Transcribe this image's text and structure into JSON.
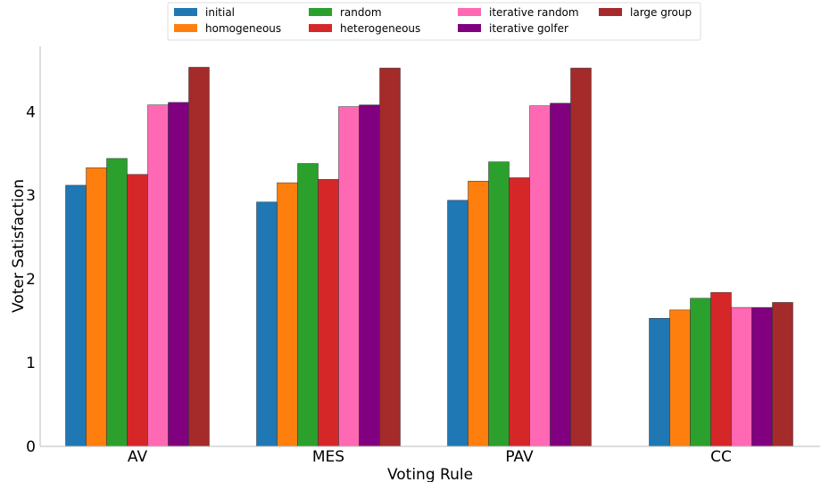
{
  "chart_data": {
    "type": "bar",
    "xlabel": "Voting Rule",
    "ylabel": "Voter Satisfaction",
    "categories": [
      "AV",
      "MES",
      "PAV",
      "CC"
    ],
    "ylim": [
      0,
      4.78
    ],
    "yticks": [
      0,
      1,
      2,
      3,
      4
    ],
    "grid": false,
    "legend_position": "top-center",
    "series": [
      {
        "name": "initial",
        "color": "#1f77b4",
        "values": [
          3.12,
          2.92,
          2.94,
          1.53
        ]
      },
      {
        "name": "homogeneous",
        "color": "#ff7f0e",
        "values": [
          3.33,
          3.15,
          3.17,
          1.63
        ]
      },
      {
        "name": "random",
        "color": "#2ca02c",
        "values": [
          3.44,
          3.38,
          3.4,
          1.77
        ]
      },
      {
        "name": "heterogeneous",
        "color": "#d62728",
        "values": [
          3.25,
          3.19,
          3.21,
          1.84
        ]
      },
      {
        "name": "iterative random",
        "color": "#ff69b4",
        "values": [
          4.08,
          4.06,
          4.07,
          1.66
        ]
      },
      {
        "name": "iterative golfer",
        "color": "#800080",
        "values": [
          4.11,
          4.08,
          4.1,
          1.66
        ]
      },
      {
        "name": "large group",
        "color": "#a52a2a",
        "values": [
          4.53,
          4.52,
          4.52,
          1.72
        ]
      }
    ]
  }
}
